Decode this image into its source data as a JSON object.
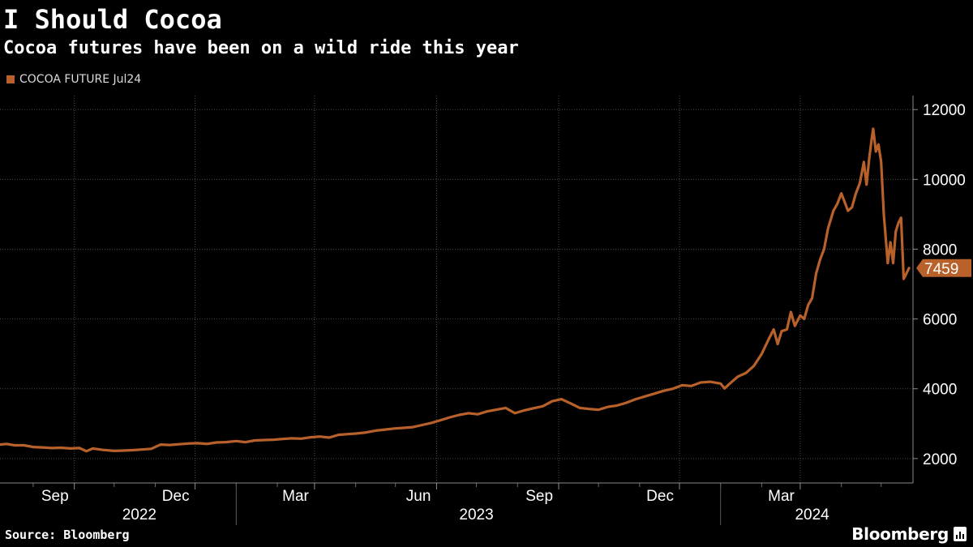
{
  "header": {
    "title": "I Should Cocoa",
    "subtitle": "Cocoa futures have been on a wild ride this year"
  },
  "legend": {
    "label": "COCOA FUTURE Jul24",
    "color": "#b8612a"
  },
  "footer": {
    "source": "Source: Bloomberg",
    "brand": "Bloomberg",
    "brand_icon": "bloomberg-chart-icon"
  },
  "colors": {
    "line": "#b8612a",
    "background": "#000000",
    "grid": "#4a4a4a",
    "text": "#ffffff"
  },
  "chart_data": {
    "type": "line",
    "title": "I Should Cocoa",
    "subtitle": "Cocoa futures have been on a wild ride this year",
    "xlabel": "",
    "ylabel": "",
    "ylim": [
      1300,
      12400
    ],
    "yticks": [
      2000,
      4000,
      6000,
      8000,
      10000,
      12000
    ],
    "xlim": [
      "2022-07-07",
      "2024-05-25"
    ],
    "month_ticks": [
      {
        "date": "2022-09-01",
        "label": "Sep"
      },
      {
        "date": "2022-12-01",
        "label": "Dec"
      },
      {
        "date": "2023-03-01",
        "label": "Mar"
      },
      {
        "date": "2023-06-01",
        "label": "Jun"
      },
      {
        "date": "2023-09-01",
        "label": "Sep"
      },
      {
        "date": "2023-12-01",
        "label": "Dec"
      },
      {
        "date": "2024-03-01",
        "label": "Mar"
      }
    ],
    "minor_tick_dates": [
      "2022-08-01",
      "2022-10-01",
      "2022-11-01",
      "2023-01-01",
      "2023-02-01",
      "2023-04-01",
      "2023-05-01",
      "2023-07-01",
      "2023-08-01",
      "2023-10-01",
      "2023-11-01",
      "2024-01-01",
      "2024-02-01",
      "2024-04-01",
      "2024-05-01"
    ],
    "year_labels": [
      {
        "center": "2022-10-20",
        "label": "2022"
      },
      {
        "center": "2023-07-01",
        "label": "2023"
      },
      {
        "center": "2024-03-10",
        "label": "2024"
      }
    ],
    "year_separators": [
      "2023-01-01",
      "2024-01-01"
    ],
    "last_value": 7459,
    "grid": true,
    "legend_position": "top-left",
    "series": [
      {
        "name": "COCOA FUTURE Jul24",
        "points": [
          [
            "2022-07-07",
            2400
          ],
          [
            "2022-07-12",
            2420
          ],
          [
            "2022-07-18",
            2380
          ],
          [
            "2022-07-25",
            2380
          ],
          [
            "2022-08-01",
            2330
          ],
          [
            "2022-08-08",
            2320
          ],
          [
            "2022-08-15",
            2300
          ],
          [
            "2022-08-22",
            2310
          ],
          [
            "2022-08-29",
            2290
          ],
          [
            "2022-09-05",
            2300
          ],
          [
            "2022-09-10",
            2210
          ],
          [
            "2022-09-15",
            2290
          ],
          [
            "2022-09-22",
            2250
          ],
          [
            "2022-10-01",
            2220
          ],
          [
            "2022-10-08",
            2230
          ],
          [
            "2022-10-15",
            2240
          ],
          [
            "2022-10-22",
            2260
          ],
          [
            "2022-10-29",
            2280
          ],
          [
            "2022-11-05",
            2400
          ],
          [
            "2022-11-12",
            2390
          ],
          [
            "2022-11-19",
            2410
          ],
          [
            "2022-11-26",
            2430
          ],
          [
            "2022-12-03",
            2440
          ],
          [
            "2022-12-10",
            2420
          ],
          [
            "2022-12-17",
            2460
          ],
          [
            "2022-12-24",
            2470
          ],
          [
            "2023-01-01",
            2500
          ],
          [
            "2023-01-08",
            2470
          ],
          [
            "2023-01-15",
            2520
          ],
          [
            "2023-01-22",
            2530
          ],
          [
            "2023-01-29",
            2540
          ],
          [
            "2023-02-05",
            2560
          ],
          [
            "2023-02-12",
            2580
          ],
          [
            "2023-02-19",
            2570
          ],
          [
            "2023-02-26",
            2610
          ],
          [
            "2023-03-05",
            2630
          ],
          [
            "2023-03-12",
            2600
          ],
          [
            "2023-03-19",
            2680
          ],
          [
            "2023-03-26",
            2700
          ],
          [
            "2023-04-02",
            2720
          ],
          [
            "2023-04-09",
            2750
          ],
          [
            "2023-04-16",
            2800
          ],
          [
            "2023-04-23",
            2830
          ],
          [
            "2023-04-30",
            2860
          ],
          [
            "2023-05-07",
            2880
          ],
          [
            "2023-05-14",
            2900
          ],
          [
            "2023-05-21",
            2960
          ],
          [
            "2023-05-28",
            3020
          ],
          [
            "2023-06-04",
            3100
          ],
          [
            "2023-06-11",
            3180
          ],
          [
            "2023-06-18",
            3250
          ],
          [
            "2023-06-25",
            3300
          ],
          [
            "2023-07-02",
            3270
          ],
          [
            "2023-07-09",
            3350
          ],
          [
            "2023-07-16",
            3400
          ],
          [
            "2023-07-23",
            3450
          ],
          [
            "2023-07-30",
            3300
          ],
          [
            "2023-08-06",
            3380
          ],
          [
            "2023-08-13",
            3440
          ],
          [
            "2023-08-20",
            3500
          ],
          [
            "2023-08-27",
            3640
          ],
          [
            "2023-09-03",
            3700
          ],
          [
            "2023-09-10",
            3580
          ],
          [
            "2023-09-17",
            3450
          ],
          [
            "2023-09-24",
            3420
          ],
          [
            "2023-10-01",
            3400
          ],
          [
            "2023-10-08",
            3480
          ],
          [
            "2023-10-15",
            3520
          ],
          [
            "2023-10-22",
            3600
          ],
          [
            "2023-10-29",
            3700
          ],
          [
            "2023-11-05",
            3780
          ],
          [
            "2023-11-12",
            3860
          ],
          [
            "2023-11-19",
            3940
          ],
          [
            "2023-11-26",
            4000
          ],
          [
            "2023-12-03",
            4100
          ],
          [
            "2023-12-10",
            4080
          ],
          [
            "2023-12-17",
            4180
          ],
          [
            "2023-12-24",
            4200
          ],
          [
            "2024-01-01",
            4150
          ],
          [
            "2024-01-04",
            4010
          ],
          [
            "2024-01-08",
            4150
          ],
          [
            "2024-01-14",
            4350
          ],
          [
            "2024-01-20",
            4450
          ],
          [
            "2024-01-26",
            4650
          ],
          [
            "2024-02-01",
            5000
          ],
          [
            "2024-02-06",
            5400
          ],
          [
            "2024-02-10",
            5700
          ],
          [
            "2024-02-13",
            5280
          ],
          [
            "2024-02-16",
            5650
          ],
          [
            "2024-02-20",
            5700
          ],
          [
            "2024-02-23",
            6200
          ],
          [
            "2024-02-26",
            5800
          ],
          [
            "2024-03-01",
            6100
          ],
          [
            "2024-03-04",
            6000
          ],
          [
            "2024-03-07",
            6400
          ],
          [
            "2024-03-10",
            6600
          ],
          [
            "2024-03-13",
            7300
          ],
          [
            "2024-03-16",
            7700
          ],
          [
            "2024-03-19",
            8000
          ],
          [
            "2024-03-22",
            8600
          ],
          [
            "2024-03-26",
            9100
          ],
          [
            "2024-03-29",
            9300
          ],
          [
            "2024-04-01",
            9600
          ],
          [
            "2024-04-03",
            9400
          ],
          [
            "2024-04-06",
            9100
          ],
          [
            "2024-04-09",
            9200
          ],
          [
            "2024-04-12",
            9600
          ],
          [
            "2024-04-15",
            9900
          ],
          [
            "2024-04-18",
            10500
          ],
          [
            "2024-04-20",
            9850
          ],
          [
            "2024-04-22",
            10600
          ],
          [
            "2024-04-24",
            11200
          ],
          [
            "2024-04-25",
            11450
          ],
          [
            "2024-04-27",
            10800
          ],
          [
            "2024-04-29",
            11000
          ],
          [
            "2024-05-01",
            10500
          ],
          [
            "2024-05-03",
            9000
          ],
          [
            "2024-05-06",
            7600
          ],
          [
            "2024-05-08",
            8200
          ],
          [
            "2024-05-10",
            7600
          ],
          [
            "2024-05-12",
            8500
          ],
          [
            "2024-05-14",
            8750
          ],
          [
            "2024-05-16",
            8900
          ],
          [
            "2024-05-18",
            7150
          ],
          [
            "2024-05-20",
            7300
          ],
          [
            "2024-05-22",
            7459
          ]
        ]
      }
    ]
  }
}
